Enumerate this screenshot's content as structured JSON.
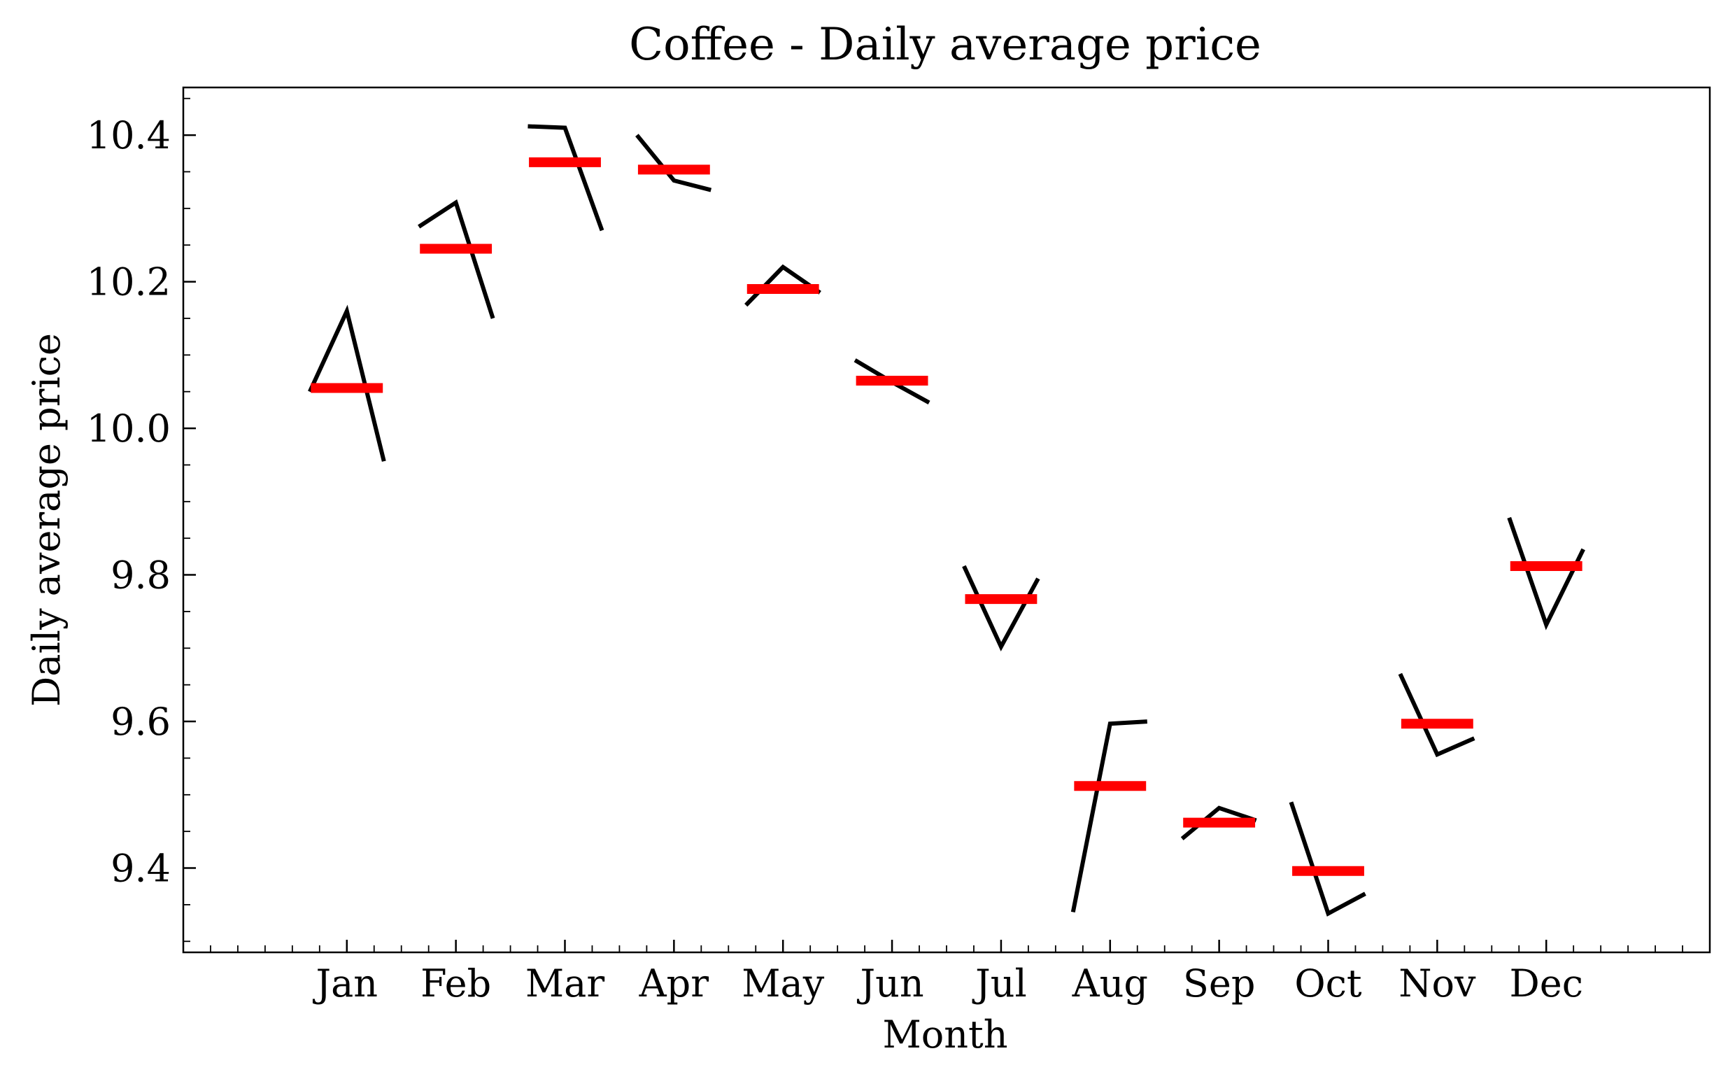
{
  "chart_data": {
    "type": "line",
    "title": "Coffee - Daily average price",
    "xlabel": "Month",
    "ylabel": "Daily average price",
    "categories": [
      "Jan",
      "Feb",
      "Mar",
      "Apr",
      "May",
      "Jun",
      "Jul",
      "Aug",
      "Sep",
      "Oct",
      "Nov",
      "Dec"
    ],
    "ylim": [
      9.285,
      10.465
    ],
    "yticks": [
      "9.4",
      "9.6",
      "9.8",
      "10.0",
      "10.2",
      "10.4"
    ],
    "grid": false,
    "legend": "none",
    "series": [
      {
        "kind": "subseries",
        "color": "#000000",
        "values": [
          [
            10.05,
            10.16,
            9.955
          ],
          [
            10.275,
            10.308,
            10.15
          ],
          [
            10.412,
            10.41,
            10.27
          ],
          [
            10.4,
            10.338,
            10.325
          ],
          [
            10.168,
            10.22,
            10.185
          ],
          [
            10.093,
            10.063,
            10.035
          ],
          [
            9.812,
            9.702,
            9.795
          ],
          [
            9.34,
            9.597,
            9.6
          ],
          [
            9.44,
            9.482,
            9.465
          ],
          [
            9.49,
            9.338,
            9.365
          ],
          [
            9.665,
            9.555,
            9.577
          ],
          [
            9.878,
            9.732,
            9.835
          ]
        ]
      },
      {
        "kind": "mean",
        "color": "#ff0000",
        "values": [
          10.055,
          10.245,
          10.363,
          10.353,
          10.19,
          10.065,
          9.767,
          9.512,
          9.462,
          9.396,
          9.597,
          9.812
        ]
      }
    ]
  }
}
